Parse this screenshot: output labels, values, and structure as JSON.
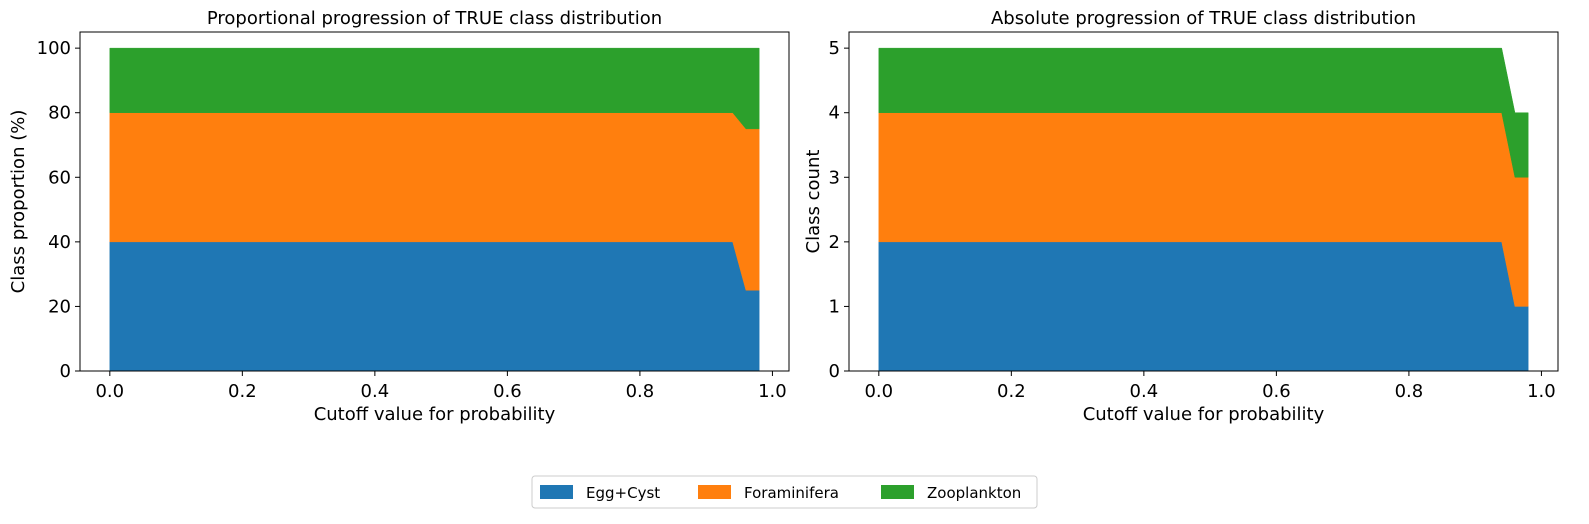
{
  "chart_data": [
    {
      "type": "area",
      "stacked": true,
      "title": "Proportional progression of TRUE class distribution",
      "xlabel": "Cutoff value for probability",
      "ylabel": "Class proportion (%)",
      "xlim": [
        -0.045,
        1.025
      ],
      "ylim": [
        0,
        105
      ],
      "xticks": [
        "0.0",
        "0.2",
        "0.4",
        "0.6",
        "0.8",
        "1.0"
      ],
      "yticks": [
        "0",
        "20",
        "40",
        "60",
        "80",
        "100"
      ],
      "x": [
        0.0,
        0.94,
        0.96,
        0.98
      ],
      "series": [
        {
          "name": "Egg+Cyst",
          "color": "#1f77b4",
          "values": [
            40,
            40,
            25,
            25
          ]
        },
        {
          "name": "Foraminifera",
          "color": "#ff7f0e",
          "values": [
            40,
            40,
            50,
            50
          ]
        },
        {
          "name": "Zooplankton",
          "color": "#2ca02c",
          "values": [
            20,
            20,
            25,
            25
          ]
        }
      ],
      "grid": false
    },
    {
      "type": "area",
      "stacked": true,
      "title": "Absolute progression of TRUE class distribution",
      "xlabel": "Cutoff value for probability",
      "ylabel": "Class count",
      "xlim": [
        -0.045,
        1.025
      ],
      "ylim": [
        0,
        5.25
      ],
      "xticks": [
        "0.0",
        "0.2",
        "0.4",
        "0.6",
        "0.8",
        "1.0"
      ],
      "yticks": [
        "0",
        "1",
        "2",
        "3",
        "4",
        "5"
      ],
      "x": [
        0.0,
        0.94,
        0.96,
        0.98
      ],
      "series": [
        {
          "name": "Egg+Cyst",
          "color": "#1f77b4",
          "values": [
            2,
            2,
            1,
            1
          ]
        },
        {
          "name": "Foraminifera",
          "color": "#ff7f0e",
          "values": [
            2,
            2,
            2,
            2
          ]
        },
        {
          "name": "Zooplankton",
          "color": "#2ca02c",
          "values": [
            1,
            1,
            1,
            1
          ]
        }
      ],
      "grid": false
    }
  ],
  "legend": {
    "placement": "bottom-center",
    "entries": [
      {
        "label": "Egg+Cyst",
        "color": "#1f77b4"
      },
      {
        "label": "Foraminifera",
        "color": "#ff7f0e"
      },
      {
        "label": "Zooplankton",
        "color": "#2ca02c"
      }
    ]
  }
}
